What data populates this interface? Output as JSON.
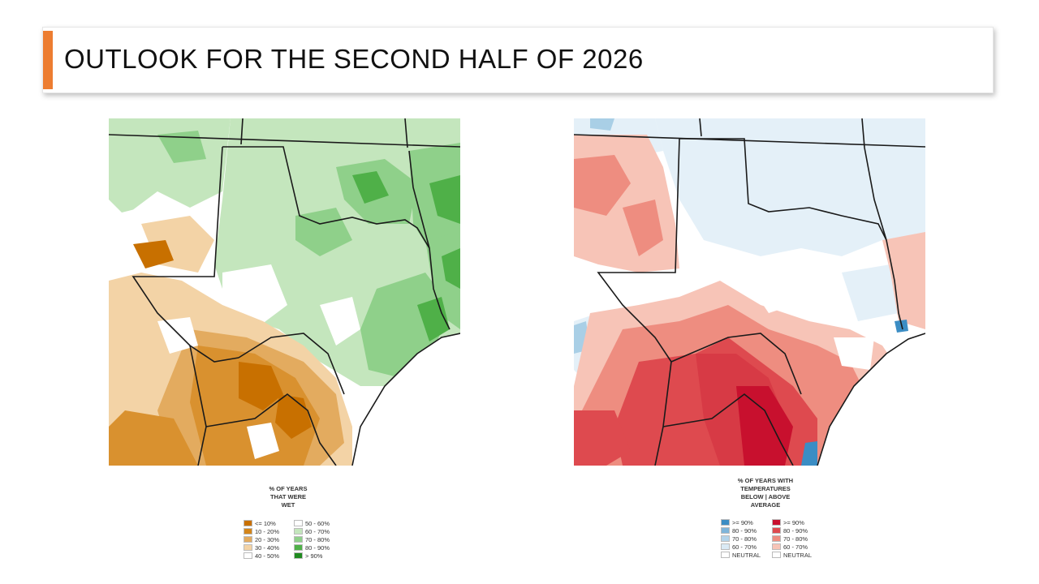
{
  "slide": {
    "title": "OUTLOOK FOR THE SECOND HALF OF 2026"
  },
  "maps": {
    "precip": {
      "legend_title_lines": [
        "% OF YEARS",
        "THAT WERE",
        "WET"
      ],
      "legend_items": [
        {
          "label": "<= 10%",
          "color": "#c87000"
        },
        {
          "label": "50 - 60%",
          "color": "#ffffff"
        },
        {
          "label": "10 - 20%",
          "color": "#d4851a"
        },
        {
          "label": "60 - 70%",
          "color": "#c4e6bd"
        },
        {
          "label": "20 - 30%",
          "color": "#e3ab5f"
        },
        {
          "label": "70 - 80%",
          "color": "#8fd08a"
        },
        {
          "label": "30 - 40%",
          "color": "#f3d3a6"
        },
        {
          "label": "80 - 90%",
          "color": "#4fb048"
        },
        {
          "label": "40 - 50%",
          "color": "#ffffff"
        },
        {
          "label": "> 90%",
          "color": "#1f8a1f"
        }
      ]
    },
    "temp": {
      "legend_title_lines": [
        "% OF YEARS WITH",
        "TEMPERATURES",
        "BELOW  |  ABOVE",
        "AVERAGE"
      ],
      "legend_items": [
        {
          "label": ">= 90%",
          "color": "#3b8dc4"
        },
        {
          "label": ">= 90%",
          "color": "#c8102e"
        },
        {
          "label": "80 - 90%",
          "color": "#7fb5da"
        },
        {
          "label": "80 - 90%",
          "color": "#de4a4f"
        },
        {
          "label": "70 - 80%",
          "color": "#b3d4ea"
        },
        {
          "label": "70 - 80%",
          "color": "#ee8d80"
        },
        {
          "label": "60 - 70%",
          "color": "#daeaf5"
        },
        {
          "label": "60 - 70%",
          "color": "#f7c4b7"
        },
        {
          "label": "NEUTRAL",
          "color": "#ffffff"
        },
        {
          "label": "NEUTRAL",
          "color": "#ffffff"
        }
      ]
    }
  },
  "colors": {
    "accent": "#ed7d31",
    "precip_dry_dark": "#c87000",
    "precip_dry_mid": "#d9912f",
    "precip_dry_light": "#f3d3a6",
    "precip_wet_light": "#c4e6bd",
    "precip_wet_mid": "#8fd08a",
    "precip_wet_dark": "#4fb048",
    "temp_warm_light": "#f7c4b7",
    "temp_warm_mid": "#ee8d80",
    "temp_warm_dark": "#d73a45",
    "temp_cool_light": "#e4f0f8",
    "temp_cool_mid": "#a9cfe6"
  }
}
